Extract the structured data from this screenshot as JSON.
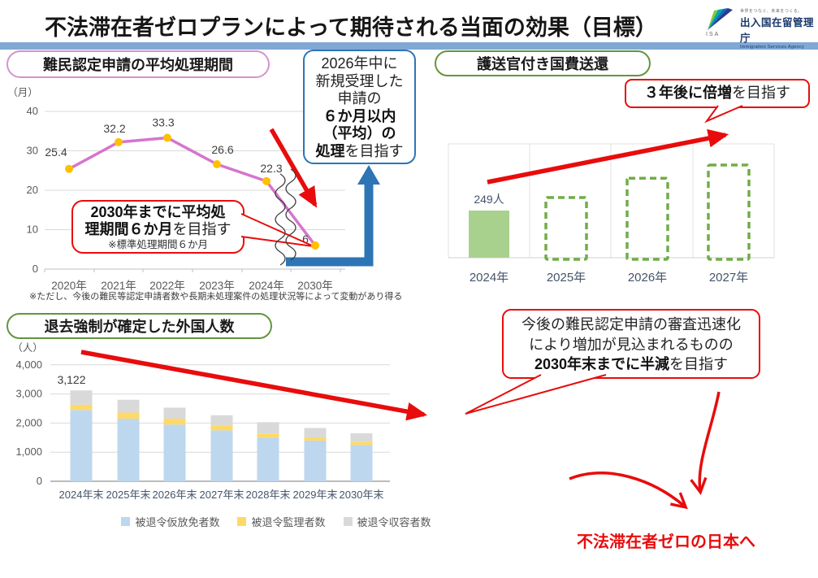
{
  "page": {
    "title": "不法滞在者ゼロプランによって期待される当面の効果（目標）",
    "slogan": "不法滞在者ゼロの日本へ"
  },
  "logo": {
    "tagline": "世界をつなぐ、未来をつくる。",
    "org_jp": "出入国在留管理庁",
    "org_en": "Immigration Services Agency",
    "mark_text": "ISA"
  },
  "sections": {
    "refugee": {
      "header": "難民認定申請の平均処理期間",
      "footnote": "※ただし、今後の難民等認定申請者数や長期未処理案件の処理状況等によって変動があり得る",
      "goal": {
        "n1": "2026年中に",
        "n2": "新規受理した",
        "n3": "申請の",
        "b1": "６か月以内",
        "b2": "（平均）の",
        "b3": "処理",
        "n4": "を目指す"
      },
      "bubble": {
        "b1": "2030年までに平均処",
        "b2": "理期間６か月",
        "n1": "を目指す",
        "note": "※標準処理期間６か月"
      }
    },
    "escort": {
      "header": "護送官付き国費送還",
      "bubble": {
        "b1": "３年後に倍増",
        "n1": "を目指す"
      }
    },
    "deport": {
      "header": "退去強制が確定した外国人数",
      "bubble": {
        "l1": "今後の難民認定申請の審査迅速化",
        "l2": "により増加が見込まれるものの",
        "b1": "2030年末までに半減",
        "n1": "を目指す"
      }
    }
  },
  "colors": {
    "red": "#e80c0c",
    "blue": "#2e75b6",
    "accent_bar": "#7fa8d4",
    "pink_border": "#d591d0",
    "green_border": "#63953e",
    "solid_bar_green": "#a9d18e",
    "dashed_bar_green": "#70ad47"
  },
  "chart_data": [
    {
      "id": "refugee-average-processing-period",
      "type": "line",
      "title": "難民認定申請の平均処理期間",
      "ylabel": "（月）",
      "categories": [
        "2020年",
        "2021年",
        "2022年",
        "2023年",
        "2024年",
        "2030年"
      ],
      "values": [
        25.4,
        32.2,
        33.3,
        26.6,
        22.3,
        6
      ],
      "data_labels": [
        "25.4",
        "32.2",
        "33.3",
        "26.6",
        "22.3",
        "6"
      ],
      "ylim": [
        0,
        40
      ],
      "yticks": [
        0,
        10,
        20,
        30,
        40
      ],
      "axis_break": "2024年と2030年の間に波線による省略記号",
      "line_color": "#d674ce",
      "marker_color": "#ffc000",
      "grid": true
    },
    {
      "id": "escorted-deportation-at-government-expense",
      "type": "bar",
      "title": "護送官付き国費送還",
      "categories": [
        "2024年",
        "2025年",
        "2026年",
        "2027年"
      ],
      "bars": [
        {
          "category": "2024年",
          "value": 249,
          "label": "249人",
          "style": "solid",
          "color": "#a9d18e"
        },
        {
          "category": "2025年",
          "value": null,
          "style": "dashed-target",
          "relative_height": 1.31
        },
        {
          "category": "2026年",
          "value": null,
          "style": "dashed-target",
          "relative_height": 1.72
        },
        {
          "category": "2027年",
          "value": null,
          "style": "dashed-target",
          "relative_height": 2.0
        }
      ],
      "dashed_color": "#70ad47",
      "grid": true
    },
    {
      "id": "foreigners-with-finalized-deportation-orders",
      "type": "bar",
      "stacked": true,
      "title": "退去強制が確定した外国人数",
      "ylabel": "（人）",
      "categories": [
        "2024年末",
        "2025年末",
        "2026年末",
        "2027年末",
        "2028年末",
        "2029年末",
        "2030年末"
      ],
      "series": [
        {
          "name": "被退令仮放免者数",
          "color": "#bdd7ee",
          "values": [
            2450,
            2150,
            1950,
            1750,
            1500,
            1400,
            1250
          ]
        },
        {
          "name": "被退令監理者数",
          "color": "#ffd966",
          "values": [
            180,
            210,
            200,
            150,
            130,
            110,
            110
          ]
        },
        {
          "name": "被退令収容者数",
          "color": "#d9d9d9",
          "values": [
            492,
            440,
            380,
            370,
            400,
            320,
            290
          ]
        }
      ],
      "annotated_total": {
        "category": "2024年末",
        "label": "3,122"
      },
      "ylim": [
        0,
        4000
      ],
      "yticks": [
        0,
        1000,
        2000,
        3000,
        4000
      ],
      "legend_position": "bottom"
    }
  ]
}
